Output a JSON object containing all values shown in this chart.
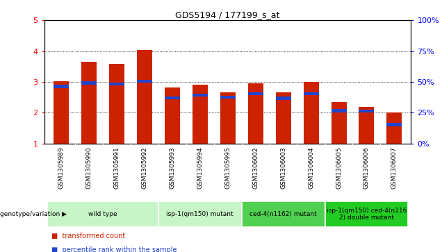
{
  "title": "GDS5194 / 177199_s_at",
  "samples": [
    "GSM1305989",
    "GSM1305990",
    "GSM1305991",
    "GSM1305992",
    "GSM1305993",
    "GSM1305994",
    "GSM1305995",
    "GSM1306002",
    "GSM1306003",
    "GSM1306004",
    "GSM1306005",
    "GSM1306006",
    "GSM1306007"
  ],
  "red_values": [
    3.03,
    3.65,
    3.58,
    4.04,
    2.81,
    2.91,
    2.67,
    2.95,
    2.67,
    3.01,
    2.35,
    2.2,
    2.01
  ],
  "blue_values": [
    2.85,
    2.97,
    2.93,
    3.02,
    2.48,
    2.57,
    2.5,
    2.62,
    2.47,
    2.62,
    2.07,
    2.05,
    1.62
  ],
  "ylim": [
    1,
    5
  ],
  "yticks": [
    1,
    2,
    3,
    4,
    5
  ],
  "y2ticks": [
    0,
    25,
    50,
    75,
    100
  ],
  "y2labels": [
    "0%",
    "25%",
    "50%",
    "75%",
    "100%"
  ],
  "groups": [
    {
      "label": "wild type",
      "indices": [
        0,
        1,
        2,
        3
      ],
      "color": "#c8f5c8"
    },
    {
      "label": "isp-1(qm150) mutant",
      "indices": [
        4,
        5,
        6
      ],
      "color": "#c8f5c8"
    },
    {
      "label": "ced-4(n1162) mutant",
      "indices": [
        7,
        8,
        9
      ],
      "color": "#50d050"
    },
    {
      "label": "isp-1(qm150) ced-4(n116\n2) double mutant",
      "indices": [
        10,
        11,
        12
      ],
      "color": "#22cc22"
    }
  ],
  "bar_color_red": "#cc2200",
  "bar_color_blue": "#2244cc",
  "bar_width": 0.55,
  "blue_bar_height": 0.1,
  "legend_red": "transformed count",
  "legend_blue": "percentile rank within the sample",
  "genotype_label": "genotype/variation"
}
